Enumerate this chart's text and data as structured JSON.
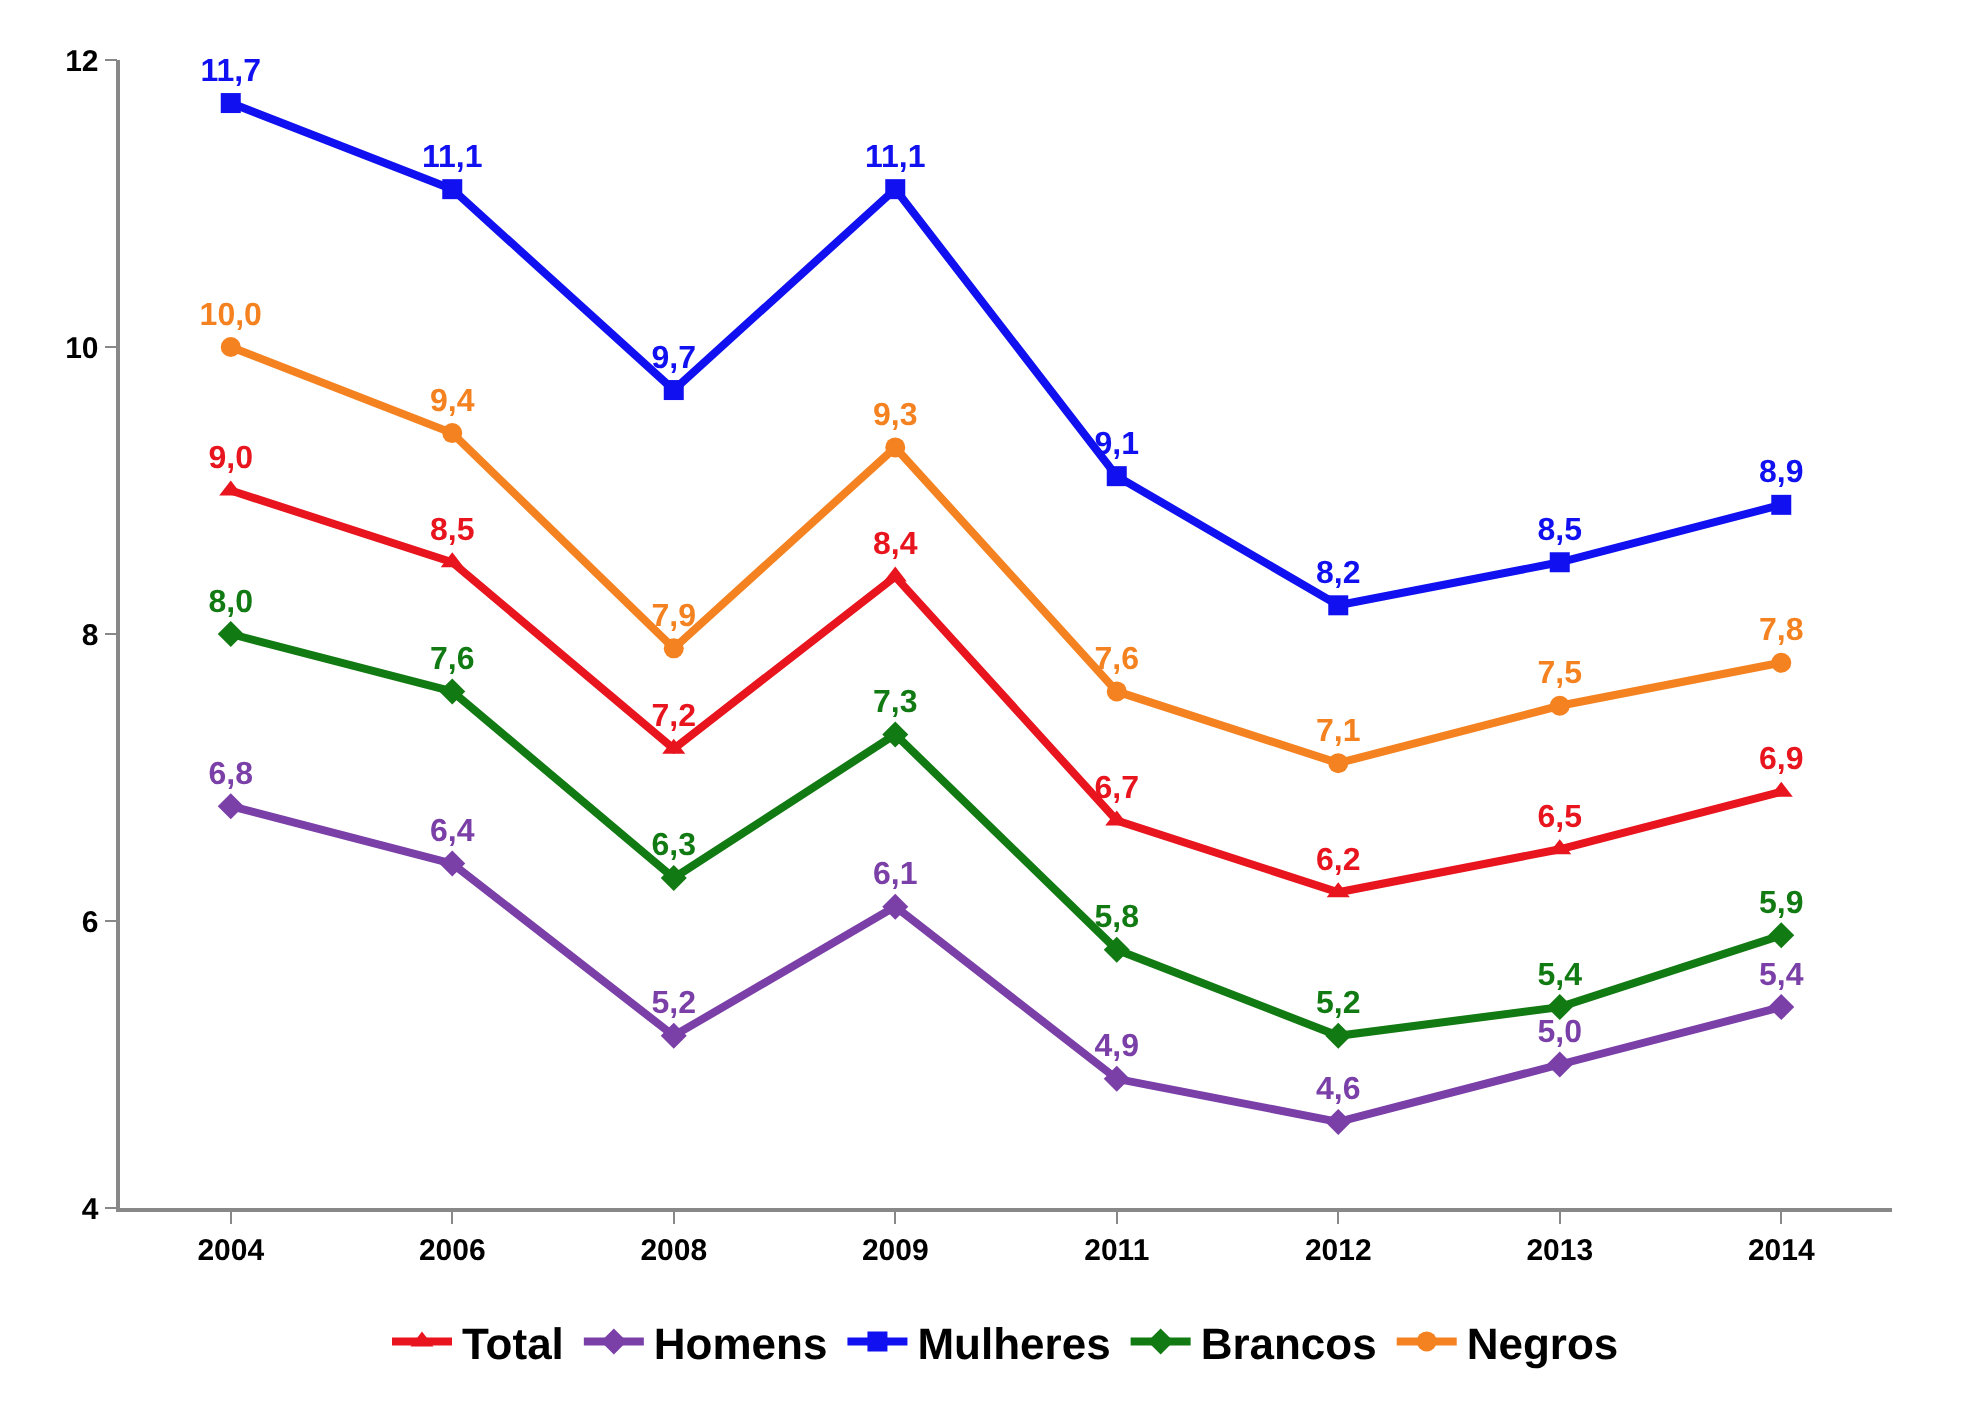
{
  "chart_data": {
    "type": "line",
    "categories": [
      "2004",
      "2006",
      "2008",
      "2009",
      "2011",
      "2012",
      "2013",
      "2014"
    ],
    "series": [
      {
        "name": "Total",
        "color": "#e8141e",
        "marker": "triangle",
        "values": [
          9.0,
          8.5,
          7.2,
          8.4,
          6.7,
          6.2,
          6.5,
          6.9
        ],
        "value_labels": [
          "9,0",
          "8,5",
          "7,2",
          "8,4",
          "6,7",
          "6,2",
          "6,5",
          "6,9"
        ]
      },
      {
        "name": "Homens",
        "color": "#7b3fa8",
        "marker": "diamond",
        "values": [
          6.8,
          6.4,
          5.2,
          6.1,
          4.9,
          4.6,
          5.0,
          5.4
        ],
        "value_labels": [
          "6,8",
          "6,4",
          "5,2",
          "6,1",
          "4,9",
          "4,6",
          "5,0",
          "5,4"
        ]
      },
      {
        "name": "Mulheres",
        "color": "#1010f0",
        "marker": "square",
        "values": [
          11.7,
          11.1,
          9.7,
          11.1,
          9.1,
          8.2,
          8.5,
          8.9
        ],
        "value_labels": [
          "11,7",
          "11,1",
          "9,7",
          "11,1",
          "9,1",
          "8,2",
          "8,5",
          "8,9"
        ]
      },
      {
        "name": "Brancos",
        "color": "#127a12",
        "marker": "diamond",
        "values": [
          8.0,
          7.6,
          6.3,
          7.3,
          5.8,
          5.2,
          5.4,
          5.9
        ],
        "value_labels": [
          "8,0",
          "7,6",
          "6,3",
          "7,3",
          "5,8",
          "5,2",
          "5,4",
          "5,9"
        ]
      },
      {
        "name": "Negros",
        "color": "#f58220",
        "marker": "circle",
        "values": [
          10.0,
          9.4,
          7.9,
          9.3,
          7.6,
          7.1,
          7.5,
          7.8
        ],
        "value_labels": [
          "10,0",
          "9,4",
          "7,9",
          "9,3",
          "7,6",
          "7,1",
          "7,5",
          "7,8"
        ]
      }
    ],
    "ylim": [
      4,
      12
    ],
    "yticks": [
      4,
      6,
      8,
      10,
      12
    ],
    "grid": false,
    "legend": "bottom",
    "line_style": "solid"
  }
}
